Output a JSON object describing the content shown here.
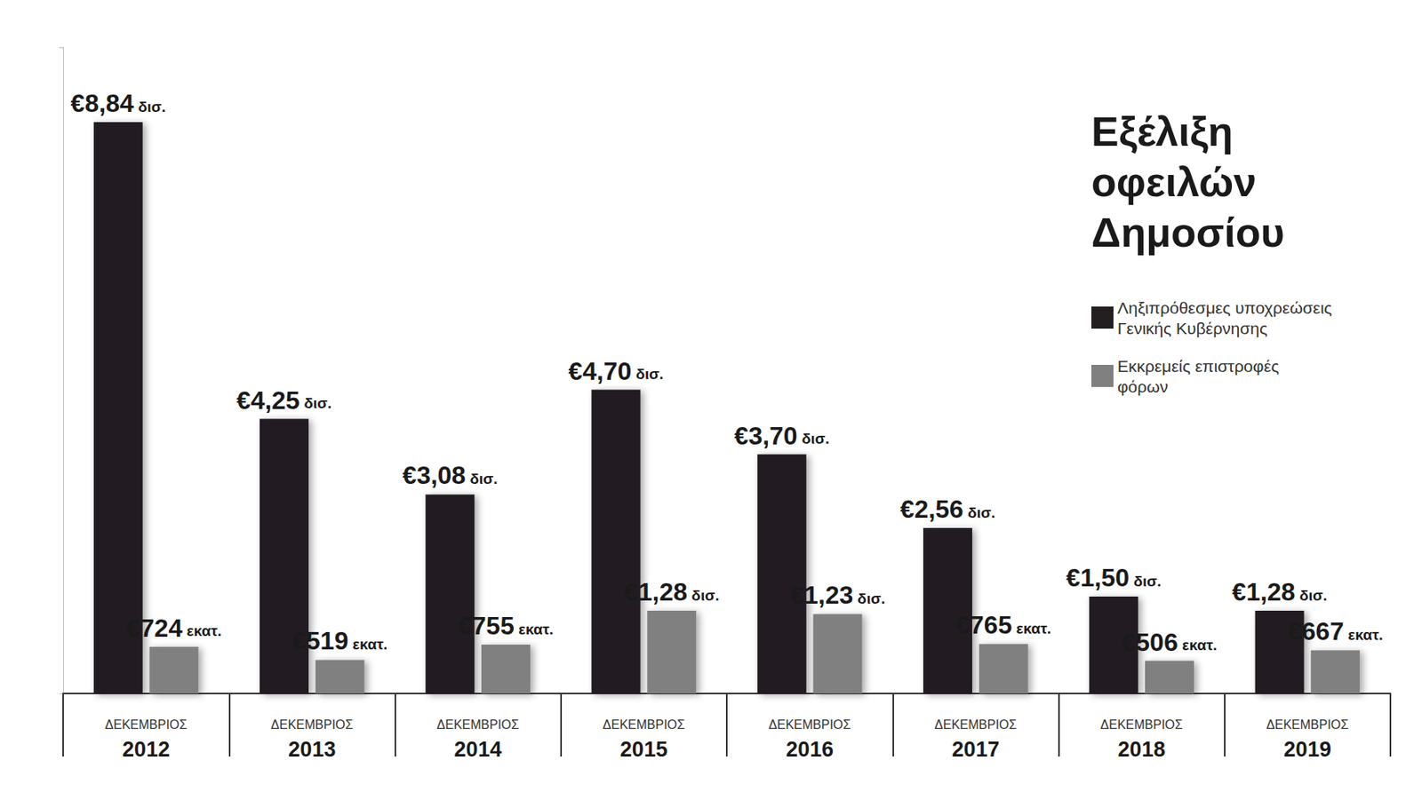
{
  "chart_data": {
    "type": "bar",
    "title": "Εξέλιξη οφειλών Δημοσίου",
    "categories": [
      "ΔΕΚΕΜΒΡΙΟΣ 2012",
      "ΔΕΚΕΜΒΡΙΟΣ 2013",
      "ΔΕΚΕΜΒΡΙΟΣ 2014",
      "ΔΕΚΕΜΒΡΙΟΣ 2015",
      "ΔΕΚΕΜΒΡΙΟΣ 2016",
      "ΔΕΚΕΜΒΡΙΟΣ 2017",
      "ΔΕΚΕΜΒΡΙΟΣ 2018",
      "ΔΕΚΕΜΒΡΙΟΣ 2019"
    ],
    "series": [
      {
        "name": "Ληξιπρόθεσμες υποχρεώσεις Γενικής Κυβέρνησης",
        "color": "#231f20",
        "values": [
          8.84,
          4.25,
          3.08,
          4.7,
          3.7,
          2.56,
          1.5,
          1.28
        ],
        "value_labels": [
          "€8,84 δισ.",
          "€4,25 δισ.",
          "€3,08 δισ.",
          "€4,70 δισ.",
          "€3,70 δισ.",
          "€2,56 δισ.",
          "€1,50 δισ.",
          "€1,28 δισ."
        ]
      },
      {
        "name": "Εκκρεμείς επιστροφές φόρων",
        "color": "#808080",
        "values": [
          0.724,
          0.519,
          0.755,
          1.28,
          1.23,
          0.765,
          0.506,
          0.667
        ],
        "value_labels": [
          "€724 εκατ.",
          "€519 εκατ.",
          "€755 εκατ.",
          "€1,28 δισ.",
          "€1,23 δισ.",
          "€765 εκατ.",
          "€506 εκατ.",
          "€667 εκατ."
        ]
      }
    ],
    "ylim": [
      0,
      10
    ],
    "yticks": [
      0,
      10
    ],
    "grid": false,
    "legend": "right",
    "data_labels": true,
    "tick_labels": "x"
  }
}
